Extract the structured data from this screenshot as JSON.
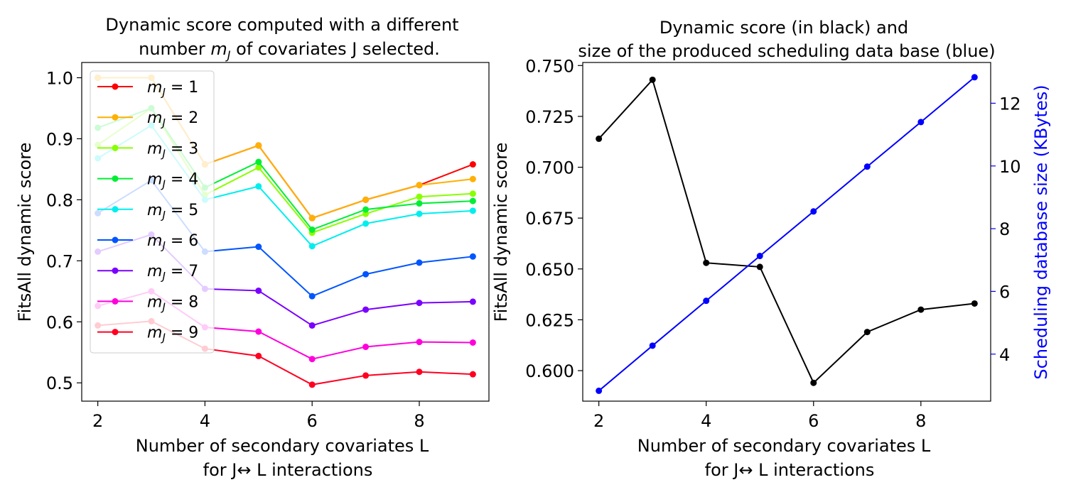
{
  "chart_data": [
    {
      "type": "line",
      "title_line1": "Dynamic score computed with a different",
      "title_line2_pre": "number ",
      "title_line2_math": "m",
      "title_line2_sub": "J",
      "title_line2_post": " of covariates J selected.",
      "xlabel_line1": "Number of secondary covariates L",
      "xlabel_line2": "for J↔ L  interactions",
      "ylabel": "FitsAll dynamic score",
      "xlim": [
        1.7,
        9.3
      ],
      "ylim": [
        0.47,
        1.025
      ],
      "xticks": [
        2,
        4,
        6,
        8
      ],
      "yticks": [
        0.5,
        0.6,
        0.7,
        0.8,
        0.9,
        1.0
      ],
      "ytick_labels": [
        "0.5",
        "0.6",
        "0.7",
        "0.8",
        "0.9",
        "1.0"
      ],
      "grid": false,
      "legend_position": "upper-left",
      "x": [
        2,
        3,
        4,
        5,
        6,
        7,
        8,
        9
      ],
      "series": [
        {
          "name": "m_J = 1",
          "legend_main": "m",
          "legend_sub": "J",
          "legend_rest": " = 1",
          "color": "#ff0000",
          "values": [
            1.0,
            1.0,
            0.858,
            0.889,
            0.77,
            0.8,
            0.824,
            0.858
          ]
        },
        {
          "name": "m_J = 2",
          "legend_main": "m",
          "legend_sub": "J",
          "legend_rest": " = 2",
          "color": "#ffb000",
          "values": [
            1.0,
            1.0,
            0.858,
            0.889,
            0.77,
            0.8,
            0.824,
            0.834
          ]
        },
        {
          "name": "m_J = 3",
          "legend_main": "m",
          "legend_sub": "J",
          "legend_rest": " = 3",
          "color": "#88ff00",
          "values": [
            0.89,
            0.95,
            0.808,
            0.853,
            0.746,
            0.777,
            0.805,
            0.81
          ]
        },
        {
          "name": "m_J = 4",
          "legend_main": "m",
          "legend_sub": "J",
          "legend_rest": " = 4",
          "color": "#00ee33",
          "values": [
            0.918,
            0.95,
            0.82,
            0.862,
            0.751,
            0.784,
            0.794,
            0.798
          ]
        },
        {
          "name": "m_J = 5",
          "legend_main": "m",
          "legend_sub": "J",
          "legend_rest": " = 5",
          "color": "#00eeee",
          "values": [
            0.868,
            0.922,
            0.8,
            0.822,
            0.724,
            0.761,
            0.777,
            0.782
          ]
        },
        {
          "name": "m_J = 6",
          "legend_main": "m",
          "legend_sub": "J",
          "legend_rest": " = 6",
          "color": "#0055ff",
          "values": [
            0.778,
            0.832,
            0.715,
            0.723,
            0.642,
            0.678,
            0.697,
            0.707
          ]
        },
        {
          "name": "m_J = 7",
          "legend_main": "m",
          "legend_sub": "J",
          "legend_rest": " = 7",
          "color": "#7a00ff",
          "values": [
            0.715,
            0.743,
            0.654,
            0.651,
            0.594,
            0.62,
            0.631,
            0.633
          ]
        },
        {
          "name": "m_J = 8",
          "legend_main": "m",
          "legend_sub": "J",
          "legend_rest": " = 8",
          "color": "#ff00dd",
          "values": [
            0.626,
            0.65,
            0.591,
            0.584,
            0.539,
            0.559,
            0.567,
            0.566
          ]
        },
        {
          "name": "m_J = 9",
          "legend_main": "m",
          "legend_sub": "J",
          "legend_rest": " = 9",
          "color": "#ff0022",
          "values": [
            0.594,
            0.601,
            0.556,
            0.544,
            0.497,
            0.512,
            0.518,
            0.514
          ]
        }
      ]
    },
    {
      "type": "line",
      "title_line1": "Dynamic score  (in black) and",
      "title_line2": "size of the produced scheduling data base (blue)",
      "xlabel_line1": "Number of secondary covariates L",
      "xlabel_line2": "for J↔ L  interactions",
      "ylabel": "FitsAll dynamic score",
      "ylabel_right": "Scheduling database size (KBytes)",
      "right_axis_color": "#0000ff",
      "xlim": [
        1.7,
        9.3
      ],
      "ylim": [
        0.585,
        0.7515
      ],
      "ylim_right": [
        2.5,
        13.3
      ],
      "xticks": [
        2,
        4,
        6,
        8
      ],
      "yticks": [
        0.6,
        0.625,
        0.65,
        0.675,
        0.7,
        0.725,
        0.75
      ],
      "ytick_labels": [
        "0.600",
        "0.625",
        "0.650",
        "0.675",
        "0.700",
        "0.725",
        "0.750"
      ],
      "yticks_right": [
        4,
        6,
        8,
        10,
        12
      ],
      "grid": false,
      "x": [
        2,
        3,
        4,
        5,
        6,
        7,
        8,
        9
      ],
      "series": [
        {
          "axis": "left",
          "color": "#000000",
          "values": [
            0.714,
            0.743,
            0.653,
            0.651,
            0.594,
            0.619,
            0.63,
            0.633
          ]
        },
        {
          "axis": "right",
          "color": "#0000ff",
          "values": [
            2.83,
            4.27,
            5.7,
            7.13,
            8.55,
            9.98,
            11.4,
            12.83
          ]
        }
      ]
    }
  ]
}
